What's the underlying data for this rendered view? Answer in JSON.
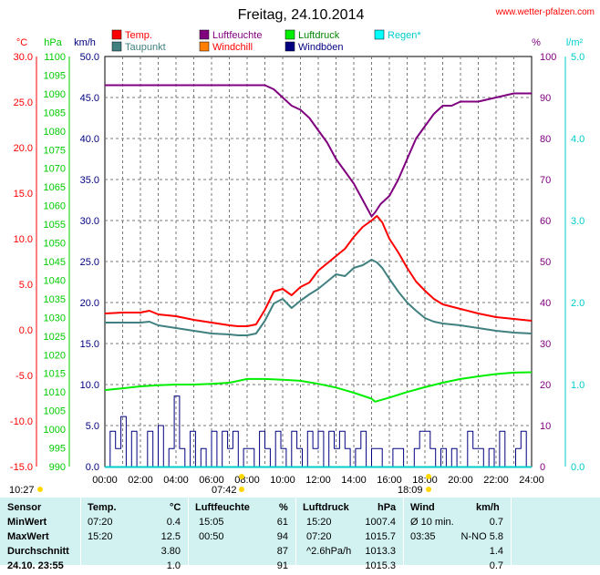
{
  "header": {
    "title": "Freitag, 24.10.2014",
    "site": "www.wetter-pfalzen.com"
  },
  "axes": {
    "temp": {
      "unit": "°C",
      "color": "#ff0000",
      "ticks": [
        "30.0",
        "25.0",
        "20.0",
        "15.0",
        "10.0",
        "5.0",
        "0.0",
        "-5.0",
        "-10.0",
        "-15.0"
      ]
    },
    "hpa": {
      "unit": "hPa",
      "color": "#00cc00",
      "ticks": [
        "1100",
        "1095",
        "1090",
        "1085",
        "1080",
        "1075",
        "1070",
        "1065",
        "1060",
        "1055",
        "1050",
        "1045",
        "1040",
        "1035",
        "1030",
        "1025",
        "1020",
        "1015",
        "1010",
        "1005",
        "1000",
        "995",
        "990"
      ]
    },
    "kmh": {
      "unit": "km/h",
      "color": "#000080",
      "ticks": [
        "50.0",
        "45.0",
        "40.0",
        "35.0",
        "30.0",
        "25.0",
        "20.0",
        "15.0",
        "10.0",
        "5.0",
        "0.0"
      ]
    },
    "pct": {
      "unit": "%",
      "color": "#800080",
      "ticks": [
        "100",
        "90",
        "80",
        "70",
        "60",
        "50",
        "40",
        "30",
        "20",
        "10",
        "0"
      ]
    },
    "rain": {
      "unit": "l/m²",
      "color": "#00cccc",
      "ticks": [
        "5.0",
        "4.0",
        "3.0",
        "2.0",
        "1.0",
        "0.0"
      ]
    },
    "time_ticks": [
      "00:00",
      "02:00",
      "04:00",
      "06:00",
      "08:00",
      "10:00",
      "12:00",
      "14:00",
      "16:00",
      "18:00",
      "20:00",
      "22:00",
      "24:00"
    ],
    "moon": "10:27",
    "sunrise": "07:42",
    "sunset": "18:09"
  },
  "legend": [
    {
      "label": "Temp.",
      "color": "#ff0000",
      "text_color": "#ff0000"
    },
    {
      "label": "Luftfeuchte",
      "color": "#800080",
      "text_color": "#800080"
    },
    {
      "label": "Luftdruck",
      "color": "#00ee00",
      "text_color": "#008800"
    },
    {
      "label": "Regen*",
      "color": "#00ffff",
      "text_color": "#00cccc"
    },
    {
      "label": "Taupunkt",
      "color": "#408080",
      "text_color": "#408080"
    },
    {
      "label": "Windchill",
      "color": "#ff8000",
      "text_color": "#ff0000"
    },
    {
      "label": "Windböen",
      "color": "#000080",
      "text_color": "#000080"
    }
  ],
  "chart_data": {
    "type": "line",
    "xlabel": "",
    "xlim": [
      0,
      24
    ],
    "series": [
      {
        "name": "Temp.",
        "axis": "temp",
        "color": "#ff0000",
        "x": [
          0,
          1,
          2,
          2.5,
          3,
          4,
          5,
          6,
          7,
          7.5,
          8,
          8.5,
          9,
          9.5,
          10,
          10.5,
          11,
          11.5,
          12,
          12.5,
          13,
          13.5,
          14,
          14.5,
          15,
          15.3,
          15.6,
          16,
          16.5,
          17,
          17.5,
          18,
          18.5,
          19,
          20,
          21,
          22,
          23,
          24
        ],
        "y": [
          1.8,
          1.9,
          1.9,
          2.1,
          1.7,
          1.5,
          1.1,
          0.8,
          0.5,
          0.4,
          0.4,
          0.6,
          2.2,
          4.2,
          4.5,
          3.8,
          4.7,
          5.2,
          6.5,
          7.3,
          8.1,
          8.9,
          10.2,
          11.3,
          12.0,
          12.5,
          11.8,
          10.0,
          8.5,
          6.8,
          5.3,
          4.3,
          3.4,
          2.8,
          2.3,
          1.8,
          1.4,
          1.2,
          1.0
        ]
      },
      {
        "name": "Taupunkt",
        "axis": "temp",
        "color": "#408080",
        "x": [
          0,
          1,
          2,
          2.5,
          3,
          4,
          5,
          6,
          7,
          7.5,
          8,
          8.5,
          9,
          9.5,
          10,
          10.5,
          11,
          11.5,
          12,
          12.5,
          13,
          13.5,
          14,
          14.5,
          15,
          15.3,
          15.6,
          16,
          16.5,
          17,
          17.5,
          18,
          18.5,
          19,
          20,
          21,
          22,
          23,
          24
        ],
        "y": [
          0.8,
          0.8,
          0.8,
          0.9,
          0.5,
          0.2,
          -0.1,
          -0.4,
          -0.5,
          -0.6,
          -0.6,
          -0.4,
          1.0,
          2.9,
          3.4,
          2.4,
          3.2,
          3.9,
          4.5,
          5.3,
          6.1,
          5.9,
          6.8,
          7.1,
          7.7,
          7.4,
          6.8,
          5.6,
          4.2,
          3.0,
          2.1,
          1.3,
          0.9,
          0.7,
          0.5,
          0.2,
          -0.1,
          -0.3,
          -0.4
        ]
      },
      {
        "name": "Luftfeuchte",
        "axis": "pct",
        "color": "#800080",
        "x": [
          0,
          3,
          4.5,
          5.5,
          6,
          8,
          9,
          9.5,
          10,
          10.5,
          11,
          11.5,
          12,
          12.5,
          13,
          13.5,
          14,
          14.5,
          15,
          15.2,
          15.5,
          16,
          16.5,
          17,
          17.5,
          18,
          18.5,
          19,
          19.5,
          20,
          21,
          22,
          23,
          24
        ],
        "y": [
          93,
          93,
          93,
          93,
          93,
          93,
          93,
          92,
          90,
          88,
          87,
          85,
          82,
          79,
          75,
          72,
          69,
          65,
          61,
          62,
          64,
          66,
          70,
          75,
          80,
          83,
          86,
          88,
          88,
          89,
          89,
          90,
          91,
          91
        ]
      },
      {
        "name": "Luftdruck",
        "axis": "hpa",
        "color": "#00ee00",
        "x": [
          0,
          1,
          2,
          3,
          4,
          5,
          6,
          7,
          8,
          9,
          10,
          11,
          12,
          13,
          14,
          15,
          15.2,
          16,
          17,
          18,
          19,
          20,
          21,
          22,
          23,
          24
        ],
        "y": [
          1010.5,
          1011,
          1011.5,
          1011.8,
          1012,
          1012,
          1012.2,
          1012.5,
          1013.5,
          1013.5,
          1013.3,
          1013.0,
          1012.2,
          1011.2,
          1009.8,
          1008.2,
          1007.4,
          1008.5,
          1010,
          1011.3,
          1012.5,
          1013.5,
          1014.2,
          1014.8,
          1015.2,
          1015.3
        ]
      },
      {
        "name": "Windböen",
        "axis": "kmh",
        "color": "#000080",
        "x": [
          0,
          0.3,
          0.6,
          0.9,
          1.2,
          1.5,
          1.8,
          2.1,
          2.4,
          2.7,
          3.0,
          3.3,
          3.6,
          3.9,
          4.2,
          4.5,
          4.8,
          5.1,
          5.4,
          5.7,
          6.0,
          6.3,
          6.6,
          6.9,
          7.2,
          7.5,
          7.8,
          8.1,
          8.4,
          8.7,
          9.0,
          9.3,
          9.6,
          9.9,
          10.2,
          10.5,
          10.8,
          11.1,
          11.4,
          11.7,
          12.0,
          12.3,
          12.6,
          12.9,
          13.2,
          13.5,
          13.8,
          14.1,
          14.4,
          14.7,
          15.0,
          15.3,
          15.6,
          15.9,
          16.2,
          16.5,
          16.8,
          17.1,
          17.4,
          17.7,
          18.0,
          18.3,
          18.6,
          18.9,
          19.2,
          19.5,
          19.8,
          20.1,
          20.4,
          20.7,
          21.0,
          21.3,
          21.6,
          21.9,
          22.2,
          22.5,
          22.8,
          23.1,
          23.4,
          23.7,
          24.0
        ],
        "y": [
          0,
          4.3,
          2.2,
          6.1,
          0,
          4.3,
          0,
          0,
          4.3,
          0,
          5.0,
          0,
          2.2,
          8.6,
          2.2,
          0,
          4.3,
          0,
          2.2,
          0,
          4.3,
          0,
          4.3,
          2.2,
          4.3,
          0,
          2.2,
          2.2,
          0,
          4.3,
          2.2,
          0,
          4.3,
          2.2,
          0,
          4.3,
          2.2,
          0,
          4.3,
          2.2,
          4.3,
          0,
          4.3,
          2.2,
          4.3,
          2.2,
          0,
          2.2,
          4.3,
          0,
          2.2,
          2.2,
          0,
          0,
          2.2,
          2.2,
          0,
          0,
          2.2,
          4.3,
          4.3,
          2.2,
          0,
          2.2,
          0,
          2.2,
          0,
          0,
          4.3,
          2.2,
          2.2,
          0,
          2.2,
          0,
          4.3,
          0,
          0,
          2.2,
          4.3,
          0,
          0
        ]
      }
    ]
  },
  "table": {
    "headers": [
      "Sensor",
      "Temp.",
      "°C",
      "Luftfeuchte",
      "%",
      "Luftdruck",
      "hPa",
      "Wind",
      "km/h"
    ],
    "rows": [
      [
        "MinWert",
        "07:20",
        "0.4",
        "15:05",
        "61",
        "15:20",
        "1007.4",
        "Ø 10 min.",
        "0.7"
      ],
      [
        "MaxWert",
        "15:20",
        "12.5",
        "00:50",
        "94",
        "07:20",
        "1015.7",
        "03:35",
        "N-NO 5.8"
      ],
      [
        "Durchschnitt",
        "",
        "3.80",
        "",
        "87",
        "^2.6hPa/h",
        "1013.3",
        "",
        "1.4"
      ],
      [
        "24.10. 23:55",
        "",
        "1.0",
        "",
        "91",
        "",
        "1015.3",
        "",
        "0.7"
      ]
    ]
  }
}
